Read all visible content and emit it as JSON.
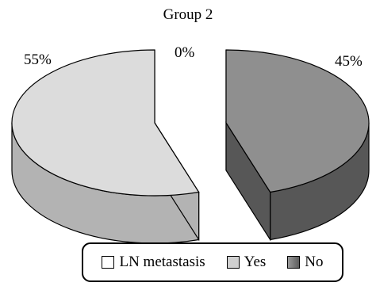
{
  "chart_data": {
    "type": "pie",
    "style": "3d-exploded",
    "title": "Group 2",
    "legend_title": "LN metastasis",
    "legend_position": "bottom",
    "series": [
      {
        "name": "Yes",
        "value": 0,
        "label": "0%",
        "color": "#dedede",
        "side_color": "#b9b9b9"
      },
      {
        "name": "No",
        "value": 45,
        "label": "45%",
        "color": "#8f8f8f",
        "side_color": "#575757"
      },
      {
        "name": "",
        "value": 55,
        "label": "55%",
        "color": "#dcdcdc",
        "side_color": "#b3b3b3"
      }
    ]
  },
  "legend": {
    "title": "LN metastasis",
    "items": [
      {
        "label": "Yes",
        "color": "#d0d0d0"
      },
      {
        "label": "No",
        "color": "#808080"
      }
    ]
  }
}
